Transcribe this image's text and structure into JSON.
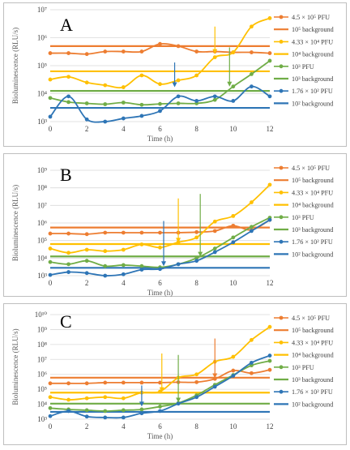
{
  "chart_data": [
    {
      "panel_letter": "A",
      "type": "line",
      "xlabel": "Time (h)",
      "ylabel": "Bioluminescence (RLU/s)",
      "yscale": "log",
      "xlim": [
        0,
        12
      ],
      "ylim_exp": [
        3,
        7
      ],
      "ytick_labels": [
        "10³",
        "10⁴",
        "10⁵",
        "10⁶",
        "10⁷"
      ],
      "xtick_labels": [
        "0",
        "2",
        "4",
        "6",
        "8",
        "10",
        "12"
      ],
      "grid": "horizontal",
      "legend_position": "right",
      "series": [
        {
          "name": "4.5 × 10⁵ PFU",
          "kind": "series",
          "color": "#ed7d31",
          "x": [
            0,
            1,
            2,
            3,
            4,
            5,
            6,
            7,
            8,
            9,
            10,
            11,
            12
          ],
          "y": [
            280000,
            280000,
            260000,
            320000,
            320000,
            320000,
            600000,
            500000,
            320000,
            320000,
            300000,
            300000,
            280000
          ]
        },
        {
          "name": "10⁵ background",
          "kind": "background",
          "color": "#ed7d31",
          "value": 500000
        },
        {
          "name": "4.33 × 10⁴ PFU",
          "kind": "series",
          "color": "#ffc000",
          "x": [
            0,
            1,
            2,
            3,
            4,
            5,
            6,
            7,
            8,
            9,
            10,
            11,
            12
          ],
          "y": [
            32000,
            40000,
            25000,
            20000,
            17000,
            45000,
            22000,
            30000,
            45000,
            200000,
            300000,
            2500000,
            5000000
          ]
        },
        {
          "name": "10⁴ background",
          "kind": "background",
          "color": "#ffc000",
          "value": 63000
        },
        {
          "name": "10³ PFU",
          "kind": "series",
          "color": "#70ad47",
          "x": [
            0,
            1,
            2,
            3,
            4,
            5,
            6,
            7,
            8,
            9,
            10,
            11,
            12
          ],
          "y": [
            7000,
            5000,
            4500,
            4200,
            4800,
            4000,
            4300,
            4500,
            4500,
            6000,
            18000,
            50000,
            150000
          ]
        },
        {
          "name": "10³ background",
          "kind": "background",
          "color": "#70ad47",
          "value": 12500
        },
        {
          "name": "1.76 × 10² PFU",
          "kind": "series",
          "color": "#2e75b6",
          "x": [
            0,
            1,
            2,
            3,
            4,
            5,
            6,
            7,
            8,
            9,
            10,
            11,
            12
          ],
          "y": [
            1500,
            8000,
            1200,
            1000,
            1300,
            1600,
            2400,
            8000,
            5500,
            8000,
            5500,
            18000,
            8000
          ]
        },
        {
          "name": "10² background",
          "kind": "background",
          "color": "#2e75b6",
          "value": 3100
        }
      ],
      "arrows": [
        {
          "x": 6.8,
          "color": "#2e75b6",
          "y_top": 130000,
          "y_tip": 17000
        },
        {
          "x": 9.0,
          "color": "#ffc000",
          "y_top": 2500000,
          "y_tip": 260000
        },
        {
          "x": 9.8,
          "color": "#70ad47",
          "y_top": 450000,
          "y_tip": 18000
        }
      ]
    },
    {
      "panel_letter": "B",
      "type": "line",
      "xlabel": "Time (h)",
      "ylabel": "Bioluminescence (RLU/s)",
      "yscale": "log",
      "xlim": [
        0,
        12
      ],
      "ylim_exp": [
        3,
        9
      ],
      "ytick_labels": [
        "10³",
        "10⁴",
        "10⁵",
        "10⁶",
        "10⁷",
        "10⁸",
        "10⁹"
      ],
      "xtick_labels": [
        "0",
        "2",
        "4",
        "6",
        "8",
        "10",
        "12"
      ],
      "grid": "horizontal",
      "legend_position": "right",
      "series": [
        {
          "name": "4.5 × 10⁵ PFU",
          "kind": "series",
          "color": "#ed7d31",
          "x": [
            0,
            1,
            2,
            3,
            4,
            5,
            6,
            7,
            8,
            9,
            10,
            11,
            12
          ],
          "y": [
            250000,
            250000,
            230000,
            280000,
            280000,
            280000,
            280000,
            280000,
            300000,
            350000,
            700000,
            400000,
            1500000
          ]
        },
        {
          "name": "10⁵ background",
          "kind": "background",
          "color": "#ed7d31",
          "value": 550000
        },
        {
          "name": "4.33 × 10⁴ PFU",
          "kind": "series",
          "color": "#ffc000",
          "x": [
            0,
            1,
            2,
            3,
            4,
            5,
            6,
            7,
            8,
            9,
            10,
            11,
            12
          ],
          "y": [
            35000,
            20000,
            30000,
            25000,
            30000,
            60000,
            40000,
            80000,
            150000,
            1200000,
            2500000,
            15000000,
            150000000
          ]
        },
        {
          "name": "10⁴ background",
          "kind": "background",
          "color": "#ffc000",
          "value": 63000
        },
        {
          "name": "10³ PFU",
          "kind": "series",
          "color": "#70ad47",
          "x": [
            0,
            1,
            2,
            3,
            4,
            5,
            6,
            7,
            8,
            9,
            10,
            11,
            12
          ],
          "y": [
            6000,
            4500,
            7000,
            3500,
            4000,
            3500,
            3000,
            4500,
            10000,
            35000,
            150000,
            600000,
            2000000
          ]
        },
        {
          "name": "10³ background",
          "kind": "background",
          "color": "#70ad47",
          "value": 12500
        },
        {
          "name": "1.76 × 10² PFU",
          "kind": "series",
          "color": "#2e75b6",
          "x": [
            0,
            1,
            2,
            3,
            4,
            5,
            6,
            7,
            8,
            9,
            10,
            11,
            12
          ],
          "y": [
            1100,
            1600,
            1400,
            1000,
            1200,
            2200,
            2400,
            4500,
            7000,
            22000,
            80000,
            350000,
            1500000
          ]
        },
        {
          "name": "10² background",
          "kind": "background",
          "color": "#2e75b6",
          "value": 2800
        }
      ],
      "arrows": [
        {
          "x": 6.2,
          "color": "#2e75b6",
          "y_top": 1300000,
          "y_tip": 3500
        },
        {
          "x": 7.0,
          "color": "#ffc000",
          "y_top": 25000000,
          "y_tip": 75000
        },
        {
          "x": 8.2,
          "color": "#70ad47",
          "y_top": 45000000,
          "y_tip": 12000
        }
      ]
    },
    {
      "panel_letter": "C",
      "type": "line",
      "xlabel": "Time (h)",
      "ylabel": "Bioluminescence (RLU/s)",
      "yscale": "log",
      "xlim": [
        0,
        12
      ],
      "ylim_exp": [
        3,
        10
      ],
      "ytick_labels": [
        "10³",
        "10⁴",
        "10⁵",
        "10⁶",
        "10⁷",
        "10⁸",
        "10⁹",
        "10¹⁰"
      ],
      "xtick_labels": [
        "0",
        "2",
        "4",
        "6",
        "8",
        "10",
        "12"
      ],
      "grid": "horizontal",
      "legend_position": "right",
      "series": [
        {
          "name": "4.5 × 10⁵ PFU",
          "kind": "series",
          "color": "#ed7d31",
          "x": [
            0,
            1,
            2,
            3,
            4,
            5,
            6,
            7,
            8,
            9,
            10,
            11,
            12
          ],
          "y": [
            250000,
            250000,
            250000,
            280000,
            280000,
            280000,
            280000,
            300000,
            300000,
            500000,
            1800000,
            1200000,
            2000000
          ]
        },
        {
          "name": "10⁵ background",
          "kind": "background",
          "color": "#ed7d31",
          "value": 600000
        },
        {
          "name": "4.33 × 10⁴ PFU",
          "kind": "series",
          "color": "#ffc000",
          "x": [
            0,
            1,
            2,
            3,
            4,
            5,
            6,
            7,
            8,
            9,
            10,
            11,
            12
          ],
          "y": [
            30000,
            20000,
            25000,
            30000,
            25000,
            60000,
            70000,
            600000,
            1000000,
            7000000,
            15000000,
            200000000,
            1500000000
          ]
        },
        {
          "name": "10⁴ background",
          "kind": "background",
          "color": "#ffc000",
          "value": 60000
        },
        {
          "name": "10³ PFU",
          "kind": "series",
          "color": "#70ad47",
          "x": [
            0,
            1,
            2,
            3,
            4,
            5,
            6,
            7,
            8,
            9,
            10,
            11,
            12
          ],
          "y": [
            5500,
            4500,
            4000,
            3500,
            4000,
            4500,
            7000,
            12000,
            40000,
            200000,
            900000,
            4000000,
            8000000
          ]
        },
        {
          "name": "10³ background",
          "kind": "background",
          "color": "#70ad47",
          "value": 11000
        },
        {
          "name": "1.76 × 10² PFU",
          "kind": "series",
          "color": "#2e75b6",
          "x": [
            0,
            1,
            2,
            3,
            4,
            5,
            6,
            7,
            8,
            9,
            10,
            11,
            12
          ],
          "y": [
            1600,
            3500,
            1500,
            1300,
            1300,
            2500,
            3500,
            11000,
            30000,
            150000,
            800000,
            6000000,
            18000000
          ]
        },
        {
          "name": "10² background",
          "kind": "background",
          "color": "#2e75b6",
          "value": 3100
        }
      ],
      "arrows": [
        {
          "x": 5.0,
          "color": "#2e75b6",
          "y_top": 180000,
          "y_tip": 7000
        },
        {
          "x": 6.1,
          "color": "#ffc000",
          "y_top": 25000000,
          "y_tip": 65000
        },
        {
          "x": 7.0,
          "color": "#70ad47",
          "y_top": 20000000,
          "y_tip": 13000
        },
        {
          "x": 9.0,
          "color": "#ed7d31",
          "y_top": 250000000,
          "y_tip": 550000
        }
      ]
    }
  ]
}
